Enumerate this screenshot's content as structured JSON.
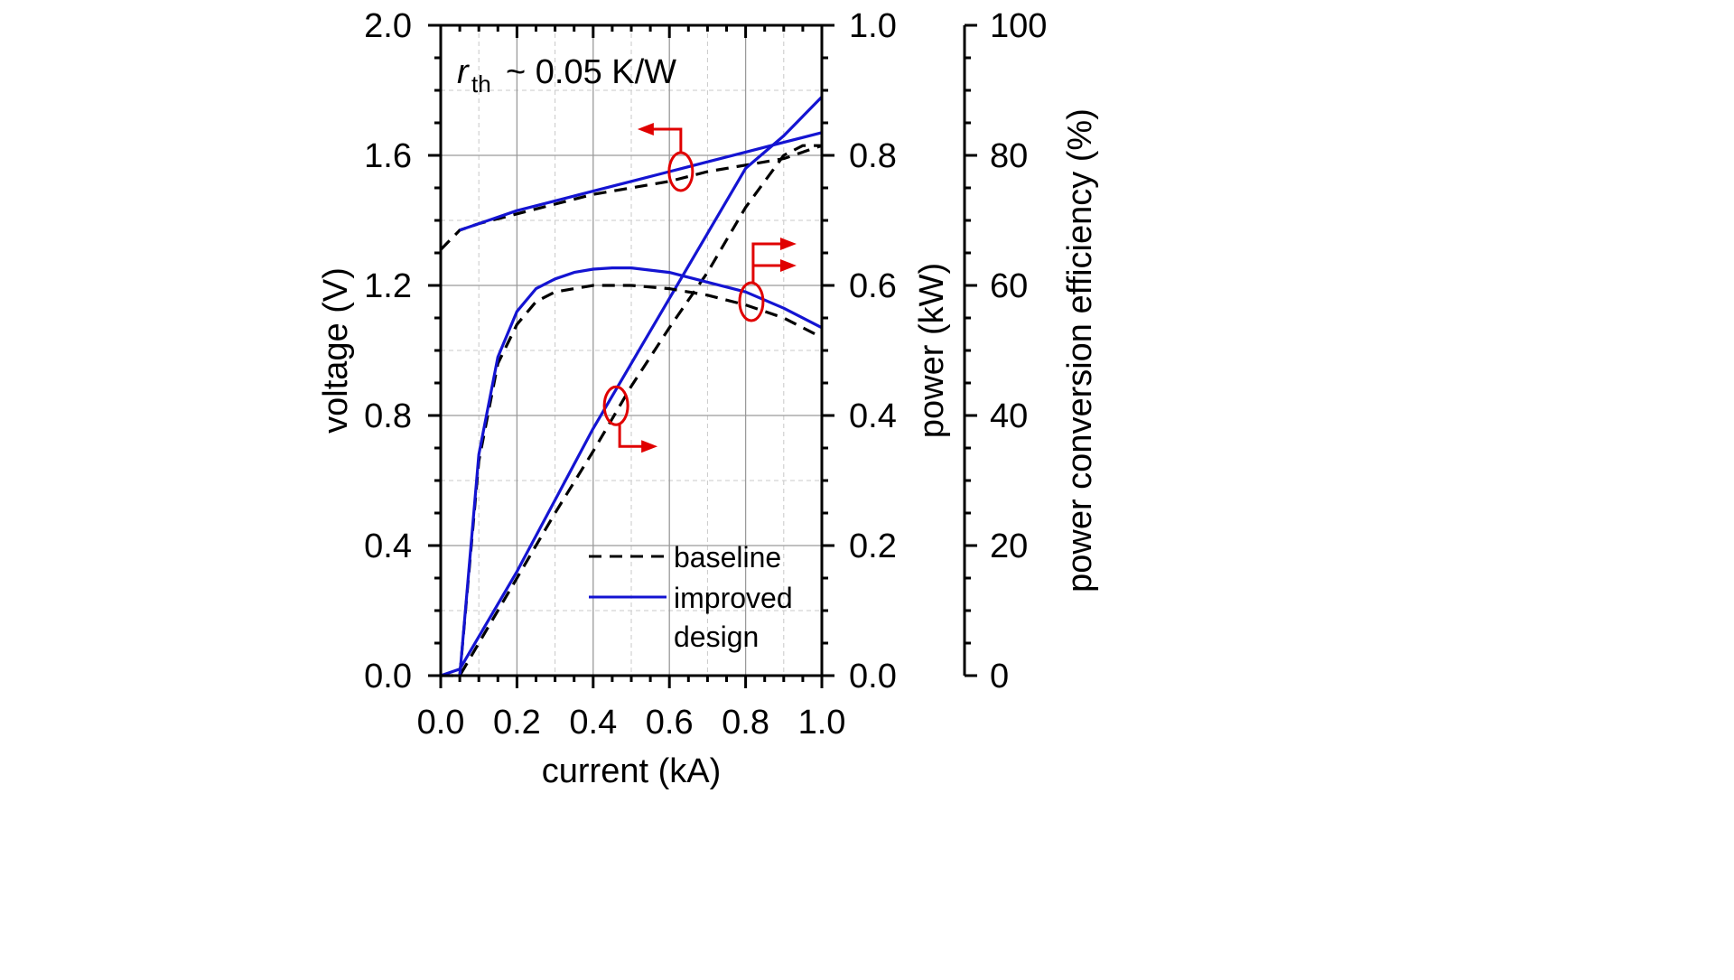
{
  "chart_data": {
    "type": "line",
    "annotation": {
      "r": "r",
      "sub": "th",
      "rest": " ~ 0.05 K/W"
    },
    "xlabel": "current (kA)",
    "ylabel_left": "voltage (V)",
    "ylabel_right1": "power (kW)",
    "ylabel_right2": "power conversion efficiency (%)",
    "xlim": [
      0.0,
      1.0
    ],
    "ylim_left": [
      0.0,
      2.0
    ],
    "ylim_right1": [
      0.0,
      1.0
    ],
    "ylim_right2": [
      0,
      100
    ],
    "xticks": [
      "0.0",
      "0.2",
      "0.4",
      "0.6",
      "0.8",
      "1.0"
    ],
    "yticks_left": [
      "0.0",
      "0.4",
      "0.8",
      "1.2",
      "1.6",
      "2.0"
    ],
    "yticks_right1": [
      "0.0",
      "0.2",
      "0.4",
      "0.6",
      "0.8",
      "1.0"
    ],
    "yticks_right2": [
      "0",
      "20",
      "40",
      "60",
      "80",
      "100"
    ],
    "grid": true,
    "legend": {
      "placement": "bottom-right",
      "items": [
        {
          "label": "baseline",
          "style": "dashed",
          "color": "#000000"
        },
        {
          "label": "improved",
          "label2": "design",
          "style": "solid",
          "color": "#1414d2"
        }
      ]
    },
    "series": [
      {
        "group": "baseline",
        "quantity": "voltage",
        "axis": "left",
        "color": "#000000",
        "dash": true,
        "x": [
          0.0,
          0.05,
          0.1,
          0.2,
          0.3,
          0.4,
          0.5,
          0.6,
          0.7,
          0.8,
          0.9,
          1.0
        ],
        "y": [
          1.31,
          1.37,
          1.39,
          1.42,
          1.45,
          1.48,
          1.5,
          1.52,
          1.55,
          1.57,
          1.59,
          1.63
        ]
      },
      {
        "group": "improved",
        "quantity": "voltage",
        "axis": "left",
        "color": "#1414d2",
        "dash": false,
        "x": [
          0.05,
          0.1,
          0.2,
          0.3,
          0.4,
          0.5,
          0.6,
          0.7,
          0.8,
          0.9,
          1.0
        ],
        "y": [
          1.37,
          1.39,
          1.43,
          1.46,
          1.49,
          1.52,
          1.55,
          1.58,
          1.61,
          1.64,
          1.67
        ]
      },
      {
        "group": "baseline",
        "quantity": "power",
        "axis": "right1",
        "color": "#000000",
        "dash": true,
        "x": [
          0.0,
          0.05,
          0.1,
          0.2,
          0.3,
          0.4,
          0.5,
          0.6,
          0.7,
          0.8,
          0.9,
          0.95,
          1.0
        ],
        "y": [
          0.0,
          0.0,
          0.05,
          0.15,
          0.25,
          0.345,
          0.445,
          0.535,
          0.62,
          0.72,
          0.8,
          0.815,
          0.815
        ]
      },
      {
        "group": "improved",
        "quantity": "power",
        "axis": "right1",
        "color": "#1414d2",
        "dash": false,
        "x": [
          0.0,
          0.05,
          0.1,
          0.2,
          0.3,
          0.4,
          0.5,
          0.6,
          0.7,
          0.8,
          0.9,
          1.0
        ],
        "y": [
          0.0,
          0.01,
          0.06,
          0.16,
          0.27,
          0.38,
          0.48,
          0.58,
          0.68,
          0.78,
          0.83,
          0.89
        ]
      },
      {
        "group": "baseline",
        "quantity": "efficiency",
        "axis": "right2",
        "color": "#000000",
        "dash": true,
        "x": [
          0.05,
          0.1,
          0.15,
          0.2,
          0.25,
          0.3,
          0.4,
          0.5,
          0.6,
          0.7,
          0.8,
          0.9,
          1.0
        ],
        "y": [
          0,
          33,
          48,
          54,
          57.5,
          59,
          60,
          60,
          59.5,
          58.5,
          57,
          55,
          52
        ]
      },
      {
        "group": "improved",
        "quantity": "efficiency",
        "axis": "right2",
        "color": "#1414d2",
        "dash": false,
        "x": [
          0.05,
          0.1,
          0.15,
          0.2,
          0.25,
          0.3,
          0.35,
          0.4,
          0.45,
          0.5,
          0.6,
          0.7,
          0.8,
          0.9,
          1.0
        ],
        "y": [
          0,
          34,
          49,
          56,
          59.5,
          61,
          62,
          62.5,
          62.7,
          62.7,
          62,
          60.5,
          59,
          56.5,
          53.5
        ]
      }
    ],
    "markers": [
      {
        "target": "voltage",
        "x": 0.63,
        "y_right1": 0.775,
        "arrow": "left"
      },
      {
        "target": "efficiency",
        "x": 0.815,
        "y_right1": 0.575,
        "arrow": "right"
      },
      {
        "target": "power",
        "x": 0.46,
        "y_right1": 0.415,
        "arrow": "right"
      }
    ]
  }
}
